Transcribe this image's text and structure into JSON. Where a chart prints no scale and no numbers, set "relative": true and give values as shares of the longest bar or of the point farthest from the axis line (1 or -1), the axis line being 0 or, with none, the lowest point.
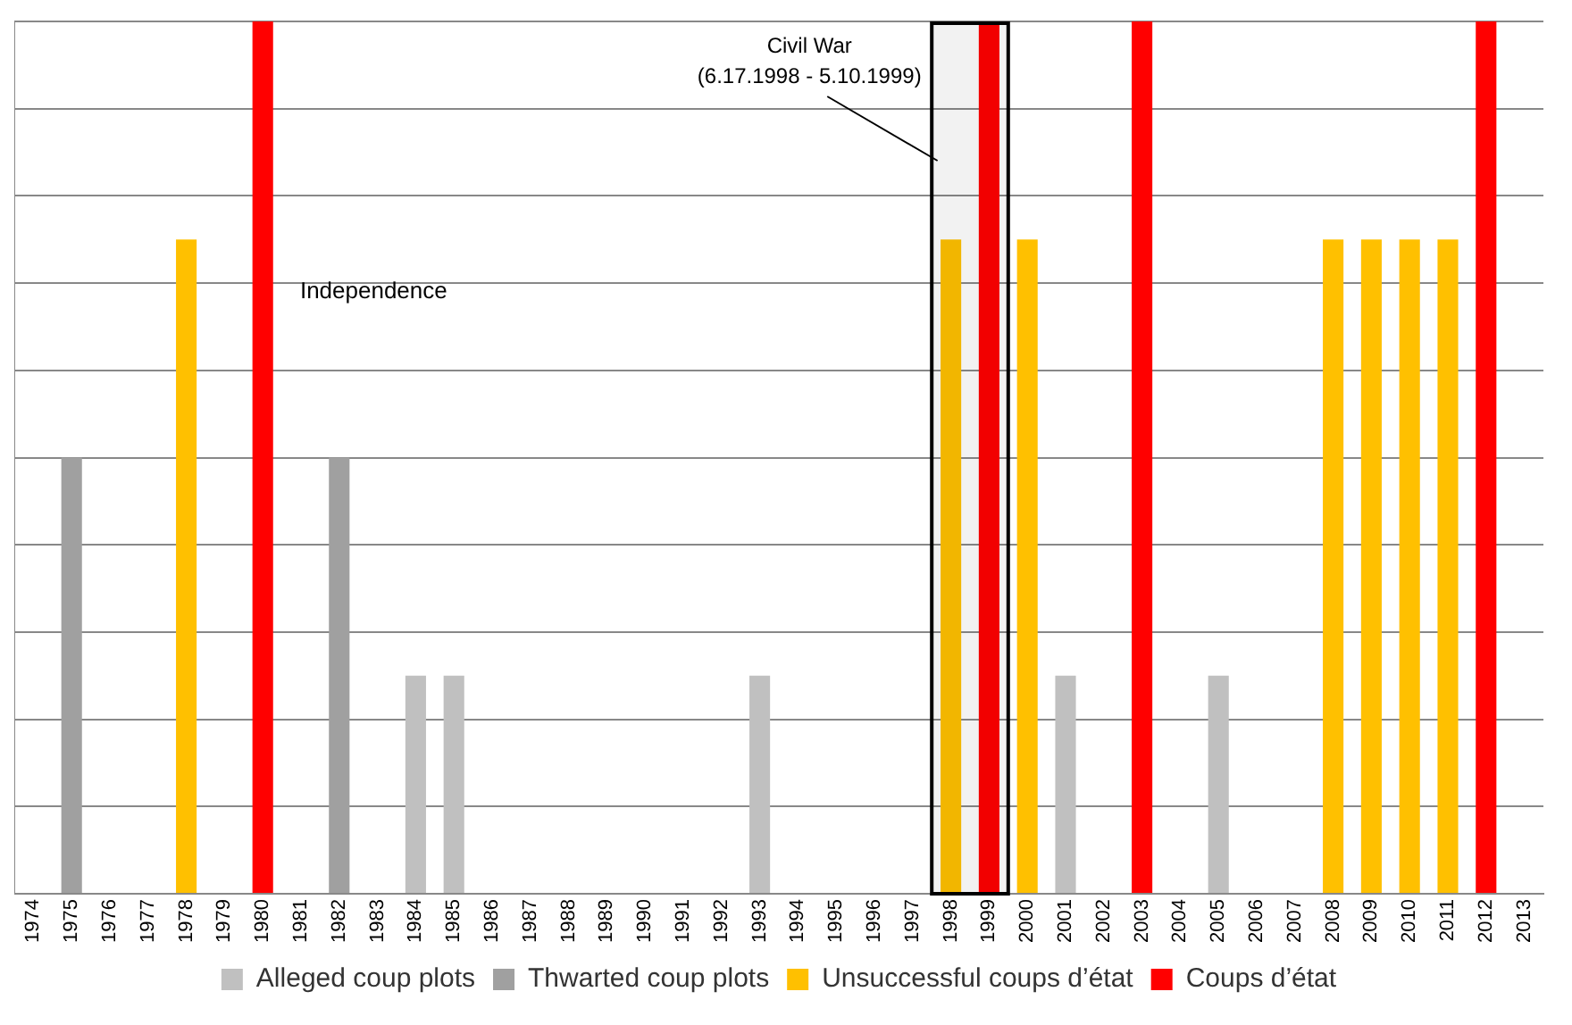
{
  "chart_data": {
    "type": "bar",
    "relative": true,
    "stacked": true,
    "grid": "y",
    "legend": "bottom",
    "categories": [
      "1974",
      "1975",
      "1976",
      "1977",
      "1978",
      "1979",
      "1980",
      "1981",
      "1982",
      "1983",
      "1984",
      "1985",
      "1986",
      "1987",
      "1988",
      "1989",
      "1990",
      "1991",
      "1992",
      "1993",
      "1994",
      "1995",
      "1996",
      "1997",
      "1998",
      "1999",
      "2000",
      "2001",
      "2002",
      "2003",
      "2004",
      "2005",
      "2006",
      "2007",
      "2008",
      "2009",
      "2010",
      "2011",
      "2012",
      "2013"
    ],
    "series": [
      {
        "name": "Alleged coup plots",
        "color": "#c0c0c0",
        "values": [
          null,
          null,
          null,
          null,
          null,
          null,
          null,
          null,
          null,
          null,
          0.25,
          0.25,
          null,
          null,
          null,
          null,
          null,
          null,
          null,
          0.25,
          null,
          null,
          null,
          null,
          null,
          null,
          null,
          0.25,
          null,
          null,
          null,
          0.25,
          null,
          null,
          null,
          null,
          null,
          null,
          null,
          null
        ]
      },
      {
        "name": "Thwarted coup plots",
        "color": "#a0a0a0",
        "values": [
          null,
          0.5,
          null,
          null,
          null,
          null,
          null,
          null,
          0.5,
          null,
          null,
          null,
          null,
          null,
          null,
          null,
          null,
          null,
          null,
          null,
          null,
          null,
          null,
          null,
          null,
          null,
          null,
          null,
          null,
          null,
          null,
          null,
          null,
          null,
          null,
          null,
          null,
          null,
          null,
          null
        ]
      },
      {
        "name": "Unsuccessful coups d’état",
        "color": "#ffc000",
        "values": [
          null,
          null,
          null,
          null,
          0.75,
          null,
          null,
          null,
          null,
          null,
          null,
          null,
          null,
          null,
          null,
          null,
          null,
          null,
          null,
          null,
          null,
          null,
          null,
          null,
          0.75,
          null,
          0.75,
          null,
          null,
          null,
          null,
          null,
          null,
          null,
          0.75,
          0.75,
          0.75,
          0.75,
          null,
          null
        ]
      },
      {
        "name": "Coups d’état",
        "color": "#ff0000",
        "values": [
          null,
          null,
          null,
          null,
          null,
          null,
          1,
          null,
          null,
          null,
          null,
          null,
          null,
          null,
          null,
          null,
          null,
          null,
          null,
          null,
          null,
          null,
          null,
          null,
          null,
          1,
          null,
          null,
          null,
          1,
          null,
          null,
          null,
          null,
          null,
          null,
          null,
          null,
          1,
          null
        ]
      }
    ],
    "annotations": [
      "Independence"
    ],
    "bands": [
      {
        "axis": "x",
        "from": "1998",
        "to": "1999",
        "label": "Civil War\n(6.17.1998 - 5.10.1999)",
        "color": "#000000"
      }
    ]
  }
}
